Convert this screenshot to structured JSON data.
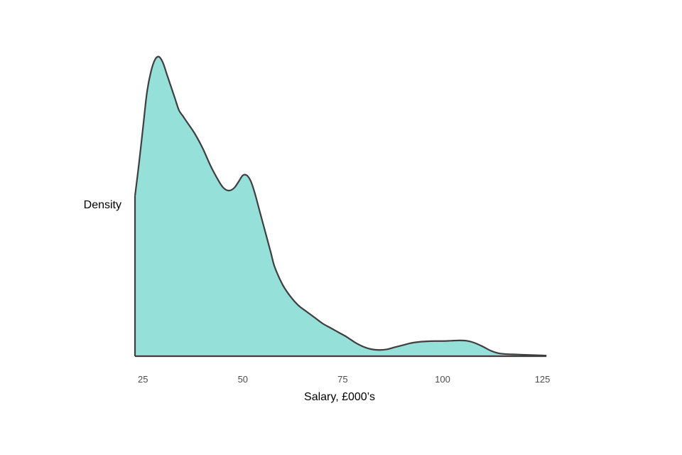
{
  "chart_data": {
    "type": "area",
    "title": "",
    "xlabel": "Salary, £000’s",
    "ylabel": "Density",
    "xlim": [
      23,
      126.5
    ],
    "ylim": [
      0,
      1.0
    ],
    "xticks": [
      25,
      50,
      75,
      100,
      125
    ],
    "xtick_labels": [
      "25",
      "50",
      "75",
      "100",
      "125"
    ],
    "yticks_shown": false,
    "grid": false,
    "legend": "none",
    "fill_color": "#95e0d9",
    "line_color": "#3f3f3f",
    "series": [
      {
        "x": [
          23.0,
          24.0,
          25.0,
          26.0,
          27.0,
          28.0,
          29.0,
          30.0,
          31.0,
          32.0,
          33.0,
          34.0,
          35.0,
          36.0,
          38.0,
          40.0,
          42.0,
          44.0,
          45.0,
          46.0,
          47.0,
          48.0,
          49.0,
          50.0,
          51.0,
          52.0,
          53.0,
          54.0,
          55.0,
          56.0,
          57.0,
          58.0,
          60.0,
          62.0,
          64.0,
          66.0,
          68.0,
          70.0,
          72.0,
          74.0,
          76.0,
          78.0,
          80.0,
          82.0,
          84.0,
          86.0,
          88.0,
          90.0,
          92.0,
          94.0,
          96.0,
          98.0,
          100.0,
          102.0,
          104.0,
          106.0,
          108.0,
          110.0,
          112.0,
          114.0,
          116.0,
          118.0,
          120.0,
          122.0,
          124.0,
          126.0
        ],
        "y": [
          0.54,
          0.65,
          0.77,
          0.89,
          0.96,
          1.0,
          1.01,
          0.99,
          0.95,
          0.91,
          0.87,
          0.83,
          0.81,
          0.79,
          0.75,
          0.7,
          0.64,
          0.59,
          0.57,
          0.56,
          0.56,
          0.57,
          0.59,
          0.61,
          0.61,
          0.59,
          0.55,
          0.5,
          0.45,
          0.4,
          0.35,
          0.3,
          0.24,
          0.2,
          0.17,
          0.15,
          0.13,
          0.11,
          0.095,
          0.08,
          0.065,
          0.047,
          0.033,
          0.024,
          0.021,
          0.023,
          0.03,
          0.037,
          0.044,
          0.048,
          0.05,
          0.051,
          0.051,
          0.052,
          0.053,
          0.052,
          0.045,
          0.033,
          0.019,
          0.01,
          0.007,
          0.006,
          0.005,
          0.004,
          0.003,
          0.002
        ]
      }
    ]
  }
}
